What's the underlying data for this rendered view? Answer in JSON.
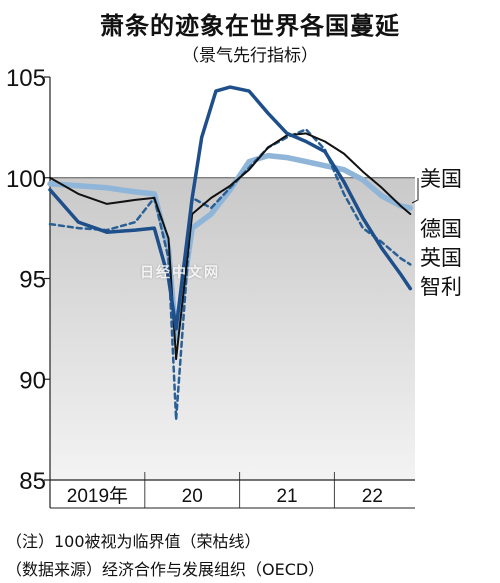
{
  "header": {
    "title": "萧条的迹象在世界各国蔓延",
    "subtitle": "（景气先行指标）"
  },
  "footer": {
    "note1": "（注）100被视为临界值（荣枯线）",
    "note2": "（数据来源）经济合作与发展组织（OECD）"
  },
  "watermark": "日经中文网",
  "colors": {
    "usa": "#111111",
    "germany": "#2a5f96",
    "uk": "#8fb5d8",
    "chile": "#1e4f8a",
    "below_threshold_fill": "#dcdcdc"
  },
  "chart_data": {
    "type": "line",
    "title": "萧条的迹象在世界各国蔓延",
    "subtitle": "（景气先行指标）",
    "ylim": [
      85,
      105
    ],
    "yticks": [
      "85",
      "90",
      "95",
      "100",
      "105"
    ],
    "threshold": 100,
    "xlim": [
      2019.0,
      2022.85
    ],
    "xtick_labels": [
      {
        "label": "2019年",
        "x": 2019.5
      },
      {
        "label": "20",
        "x": 2020.5
      },
      {
        "label": "21",
        "x": 2021.5
      },
      {
        "label": "22",
        "x": 2022.4
      }
    ],
    "x_separators": [
      2020.0,
      2021.0,
      2022.0
    ],
    "series": [
      {
        "name": "美国",
        "key": "usa",
        "dashed": false,
        "x": [
          2019.0,
          2019.3,
          2019.6,
          2019.9,
          2020.1,
          2020.25,
          2020.33,
          2020.5,
          2020.7,
          2020.9,
          2021.1,
          2021.3,
          2021.5,
          2021.7,
          2021.9,
          2022.1,
          2022.3,
          2022.5,
          2022.7,
          2022.8
        ],
        "values": [
          100.0,
          99.2,
          98.7,
          98.9,
          99.0,
          97.0,
          91.0,
          98.2,
          99.0,
          99.6,
          100.4,
          101.5,
          102.1,
          102.2,
          101.8,
          101.2,
          100.3,
          99.5,
          98.6,
          98.2
        ]
      },
      {
        "name": "德国",
        "key": "germany",
        "dashed": true,
        "x": [
          2019.0,
          2019.3,
          2019.6,
          2019.9,
          2020.1,
          2020.25,
          2020.33,
          2020.5,
          2020.7,
          2020.9,
          2021.1,
          2021.3,
          2021.5,
          2021.7,
          2021.9,
          2022.1,
          2022.3,
          2022.5,
          2022.7,
          2022.8
        ],
        "values": [
          97.7,
          97.5,
          97.4,
          97.8,
          99.0,
          96.0,
          88.0,
          99.0,
          98.5,
          99.5,
          100.5,
          101.5,
          102.0,
          102.4,
          101.4,
          99.2,
          97.5,
          96.8,
          96.0,
          95.7
        ]
      },
      {
        "name": "英国",
        "key": "uk",
        "dashed": false,
        "x": [
          2019.0,
          2019.3,
          2019.6,
          2019.9,
          2020.1,
          2020.25,
          2020.33,
          2020.5,
          2020.7,
          2020.9,
          2021.1,
          2021.3,
          2021.5,
          2021.7,
          2021.9,
          2022.1,
          2022.3,
          2022.5,
          2022.7,
          2022.8
        ],
        "values": [
          99.7,
          99.6,
          99.5,
          99.3,
          99.2,
          96.5,
          92.0,
          97.5,
          98.2,
          99.4,
          100.8,
          101.1,
          101.0,
          100.8,
          100.6,
          100.4,
          99.9,
          99.1,
          98.6,
          98.5
        ]
      },
      {
        "name": "智利",
        "key": "chile",
        "dashed": false,
        "x": [
          2019.0,
          2019.3,
          2019.6,
          2019.9,
          2020.1,
          2020.25,
          2020.33,
          2020.5,
          2020.6,
          2020.75,
          2020.9,
          2021.1,
          2021.3,
          2021.5,
          2021.7,
          2021.9,
          2022.1,
          2022.3,
          2022.5,
          2022.7,
          2022.8
        ],
        "values": [
          99.4,
          97.8,
          97.3,
          97.4,
          97.5,
          95.0,
          92.5,
          99.0,
          102.0,
          104.3,
          104.5,
          104.3,
          103.2,
          102.2,
          101.8,
          101.3,
          99.8,
          98.0,
          96.5,
          95.2,
          94.5
        ]
      }
    ],
    "legend": [
      {
        "label": "美国",
        "key": "usa"
      },
      {
        "label": "德国",
        "key": "germany"
      },
      {
        "label": "英国",
        "key": "uk"
      },
      {
        "label": "智利",
        "key": "chile"
      }
    ],
    "legend_position": "right"
  }
}
